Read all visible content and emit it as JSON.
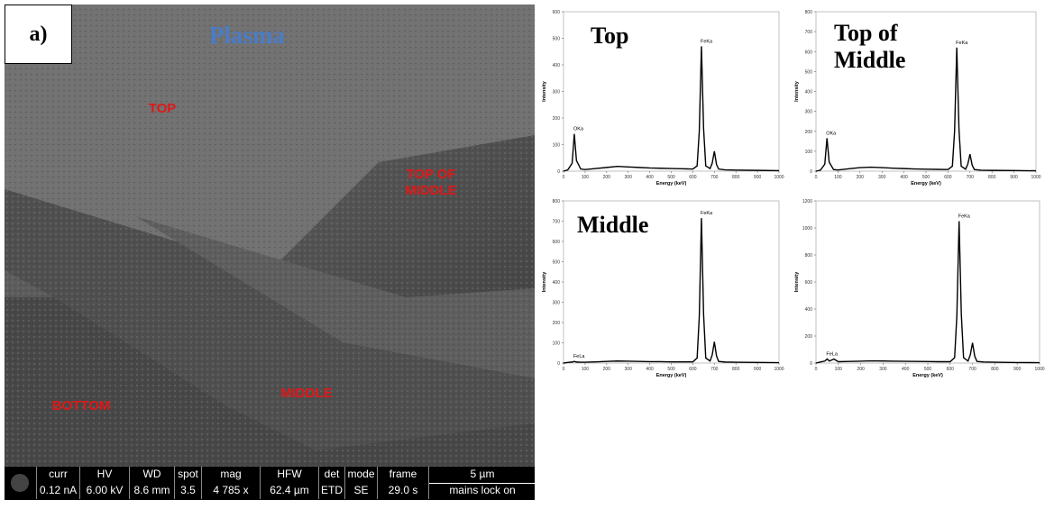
{
  "sem": {
    "panel_label": "a)",
    "title": "Plasma",
    "regions": [
      "TOP",
      "TOP OF MIDDLE",
      "MIDDLE",
      "BOTTOM"
    ],
    "status_bar": {
      "headers": [
        "curr",
        "HV",
        "WD",
        "spot",
        "mag",
        "HFW",
        "det",
        "mode",
        "frame",
        "5 µm"
      ],
      "values": [
        "0.12 nA",
        "6.00 kV",
        "8.6 mm",
        "3.5",
        "4 785 x",
        "62.4 µm",
        "ETD",
        "SE",
        "29.0 s",
        "mains lock on"
      ]
    }
  },
  "chart_data": [
    {
      "type": "line",
      "title": "Top",
      "x_label": "Energy (keV)",
      "y_label": "Intensity",
      "color": "#000000",
      "x": [
        0,
        20,
        40,
        50,
        60,
        80,
        100,
        150,
        200,
        250,
        300,
        350,
        400,
        450,
        500,
        550,
        600,
        620,
        630,
        640,
        650,
        660,
        680,
        690,
        700,
        710,
        720,
        750,
        800,
        900,
        1000
      ],
      "values": [
        0,
        5,
        30,
        140,
        40,
        8,
        6,
        10,
        14,
        18,
        16,
        14,
        12,
        11,
        10,
        9,
        8,
        20,
        150,
        470,
        160,
        20,
        10,
        30,
        75,
        25,
        8,
        5,
        4,
        3,
        2
      ],
      "annotations": [
        {
          "text": "OKa",
          "x": 50,
          "y": 140
        },
        {
          "text": "FeKa",
          "x": 640,
          "y": 470
        }
      ],
      "xlim": [
        0,
        1000
      ],
      "xticks": [
        0,
        100,
        200,
        300,
        400,
        500,
        600,
        700,
        800,
        900,
        1000
      ],
      "ylim": [
        0,
        600
      ],
      "yticks": [
        0,
        100,
        200,
        300,
        400,
        500,
        600
      ]
    },
    {
      "type": "line",
      "title": "Top of Middle",
      "x_label": "Energy (keV)",
      "y_label": "Intensity",
      "color": "#000000",
      "x": [
        0,
        20,
        40,
        50,
        60,
        80,
        100,
        150,
        200,
        250,
        300,
        350,
        400,
        450,
        500,
        550,
        600,
        620,
        630,
        640,
        650,
        660,
        680,
        690,
        700,
        710,
        720,
        750,
        800,
        900,
        1000
      ],
      "values": [
        0,
        5,
        35,
        165,
        45,
        8,
        6,
        12,
        18,
        20,
        18,
        15,
        13,
        11,
        10,
        9,
        8,
        25,
        200,
        620,
        210,
        25,
        10,
        35,
        85,
        30,
        8,
        5,
        4,
        3,
        2
      ],
      "annotations": [
        {
          "text": "OKa",
          "x": 50,
          "y": 165
        },
        {
          "text": "FeKa",
          "x": 640,
          "y": 620
        }
      ],
      "xlim": [
        0,
        1000
      ],
      "xticks": [
        0,
        100,
        200,
        300,
        400,
        500,
        600,
        700,
        800,
        900,
        1000
      ],
      "ylim": [
        0,
        800
      ],
      "yticks": [
        0,
        100,
        200,
        300,
        400,
        500,
        600,
        700,
        800
      ]
    },
    {
      "type": "line",
      "title": "Middle",
      "x_label": "Energy (keV)",
      "y_label": "Intensity",
      "color": "#000000",
      "x": [
        0,
        20,
        40,
        50,
        60,
        80,
        100,
        150,
        200,
        250,
        300,
        350,
        400,
        450,
        500,
        550,
        600,
        620,
        630,
        640,
        650,
        660,
        680,
        690,
        700,
        710,
        720,
        750,
        800,
        900,
        1000
      ],
      "values": [
        0,
        3,
        5,
        8,
        5,
        4,
        4,
        6,
        8,
        10,
        9,
        8,
        7,
        7,
        6,
        6,
        6,
        25,
        230,
        715,
        240,
        25,
        10,
        40,
        105,
        35,
        8,
        5,
        4,
        3,
        2
      ],
      "annotations": [
        {
          "text": "FeLa",
          "x": 50,
          "y": 8
        },
        {
          "text": "FeKa",
          "x": 640,
          "y": 715
        }
      ],
      "xlim": [
        0,
        1000
      ],
      "xticks": [
        0,
        100,
        200,
        300,
        400,
        500,
        600,
        700,
        800,
        900,
        1000
      ],
      "ylim": [
        0,
        800
      ],
      "yticks": [
        0,
        100,
        200,
        300,
        400,
        500,
        600,
        700,
        800
      ]
    },
    {
      "type": "line",
      "x_label": "Energy (keV)",
      "y_label": "Intensity",
      "color": "#000000",
      "x": [
        0,
        20,
        40,
        50,
        60,
        80,
        100,
        150,
        200,
        250,
        300,
        350,
        400,
        450,
        500,
        550,
        600,
        620,
        630,
        640,
        650,
        660,
        680,
        690,
        700,
        710,
        720,
        750,
        800,
        900,
        1000
      ],
      "values": [
        0,
        8,
        15,
        30,
        15,
        30,
        10,
        12,
        14,
        16,
        15,
        14,
        13,
        12,
        11,
        10,
        10,
        40,
        350,
        1050,
        360,
        40,
        15,
        60,
        150,
        50,
        12,
        8,
        6,
        4,
        3
      ],
      "annotations": [
        {
          "text": "FeLa",
          "x": 50,
          "y": 30
        },
        {
          "text": "FeKa",
          "x": 640,
          "y": 1050
        }
      ],
      "xlim": [
        0,
        1000
      ],
      "xticks": [
        0,
        100,
        200,
        300,
        400,
        500,
        600,
        700,
        800,
        900,
        1000
      ],
      "ylim": [
        0,
        1200
      ],
      "yticks": [
        0,
        200,
        400,
        600,
        800,
        1000,
        1200
      ]
    }
  ]
}
